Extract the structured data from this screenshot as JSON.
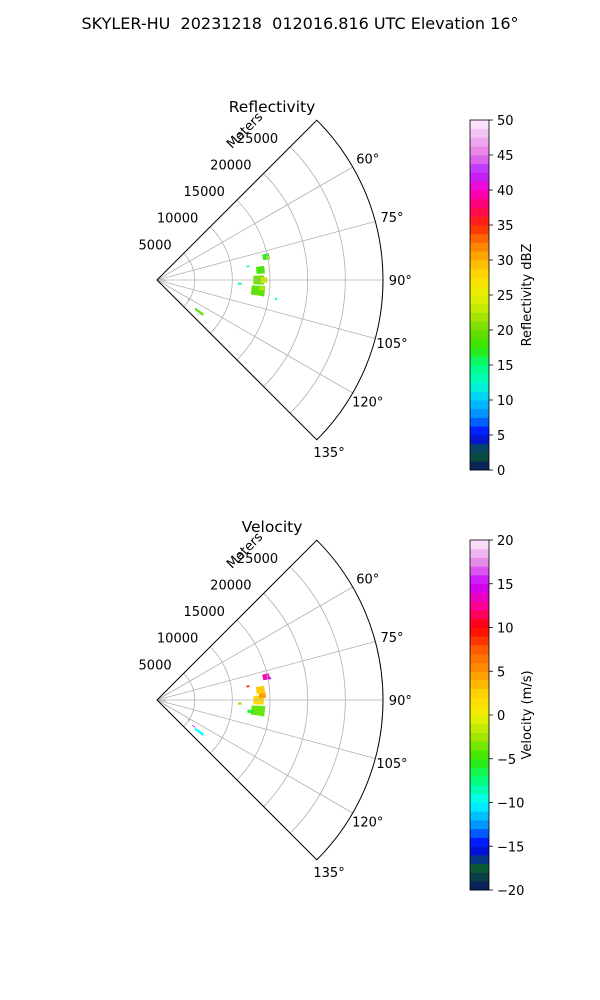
{
  "figure": {
    "title": "SKYLER-HU  20231218  012016.816 UTC Elevation 16°"
  },
  "chart_data": [
    {
      "type": "heatmap",
      "subtype": "polar-sector",
      "title": "Reflectivity",
      "radial_label": "Meters",
      "radial_ticks": [
        5000,
        10000,
        15000,
        20000,
        25000
      ],
      "radial_tick_labels": [
        "5000",
        "10000",
        "15000",
        "20000",
        "25000"
      ],
      "radial_max_m": 30000,
      "angle_ticks_deg": [
        60,
        75,
        90,
        105,
        120,
        135
      ],
      "angle_tick_labels": [
        "60°",
        "75°",
        "90°",
        "105°",
        "120°",
        "135°"
      ],
      "azimuth_range_deg": [
        45,
        135
      ],
      "grid": true,
      "colorbar": {
        "label": "Reflectivity dBZ",
        "min": 0,
        "max": 50,
        "ticks": [
          0,
          5,
          10,
          15,
          20,
          25,
          30,
          35,
          40,
          45,
          50
        ],
        "tick_labels": [
          "0",
          "5",
          "10",
          "15",
          "20",
          "25",
          "30",
          "35",
          "40",
          "45",
          "50"
        ],
        "stops": [
          {
            "value": 0,
            "color": "#0a1464"
          },
          {
            "value": 2.5,
            "color": "#0a5a32"
          },
          {
            "value": 5,
            "color": "#0000ff"
          },
          {
            "value": 7.5,
            "color": "#0080ff"
          },
          {
            "value": 10,
            "color": "#00c8ff"
          },
          {
            "value": 12.5,
            "color": "#00ffc8"
          },
          {
            "value": 15,
            "color": "#00ff80"
          },
          {
            "value": 17.5,
            "color": "#32e600"
          },
          {
            "value": 20,
            "color": "#6edc00"
          },
          {
            "value": 22.5,
            "color": "#b4e600"
          },
          {
            "value": 25,
            "color": "#e6f000"
          },
          {
            "value": 27.5,
            "color": "#ffdc00"
          },
          {
            "value": 30,
            "color": "#ffb400"
          },
          {
            "value": 32.5,
            "color": "#ff7800"
          },
          {
            "value": 35,
            "color": "#ff2800"
          },
          {
            "value": 37.5,
            "color": "#ff0064"
          },
          {
            "value": 40,
            "color": "#ff00c8"
          },
          {
            "value": 42.5,
            "color": "#b428ff"
          },
          {
            "value": 45,
            "color": "#e678e6"
          },
          {
            "value": 47.5,
            "color": "#f0b4f0"
          },
          {
            "value": 50,
            "color": "#fff0ff"
          }
        ]
      },
      "echoes": [
        {
          "az": 90,
          "r": 13500,
          "daz": 5.0,
          "dr": 1400,
          "value": 20
        },
        {
          "az": 90,
          "r": 14200,
          "daz": 3.0,
          "dr": 900,
          "value": 24
        },
        {
          "az": 96,
          "r": 13500,
          "daz": 5.5,
          "dr": 1800,
          "value": 19
        },
        {
          "az": 94.5,
          "r": 14000,
          "daz": 2.0,
          "dr": 700,
          "value": 23
        },
        {
          "az": 84.5,
          "r": 13800,
          "daz": 4.0,
          "dr": 1100,
          "value": 18
        },
        {
          "az": 78,
          "r": 14800,
          "daz": 3.0,
          "dr": 900,
          "value": 17
        },
        {
          "az": 78.5,
          "r": 15000,
          "daz": 1.2,
          "dr": 400,
          "value": 24
        },
        {
          "az": 81.5,
          "r": 12200,
          "daz": 1.0,
          "dr": 400,
          "value": 14
        },
        {
          "az": 92.5,
          "r": 11000,
          "daz": 1.5,
          "dr": 500,
          "value": 12
        },
        {
          "az": 127,
          "r": 7000,
          "daz": 2.5,
          "dr": 1400,
          "value": 19
        },
        {
          "az": 122,
          "r": 5000,
          "daz": 1.2,
          "dr": 300,
          "value": 11
        },
        {
          "az": 88,
          "r": 700,
          "daz": 6.0,
          "dr": 500,
          "value": 6
        },
        {
          "az": 94,
          "r": 1000,
          "daz": 3.0,
          "dr": 400,
          "value": 9
        },
        {
          "az": 99,
          "r": 16000,
          "daz": 1.0,
          "dr": 300,
          "value": 13
        }
      ]
    },
    {
      "type": "heatmap",
      "subtype": "polar-sector",
      "title": "Velocity",
      "radial_label": "Meters",
      "radial_ticks": [
        5000,
        10000,
        15000,
        20000,
        25000
      ],
      "radial_tick_labels": [
        "5000",
        "10000",
        "15000",
        "20000",
        "25000"
      ],
      "radial_max_m": 30000,
      "angle_ticks_deg": [
        60,
        75,
        90,
        105,
        120,
        135
      ],
      "angle_tick_labels": [
        "60°",
        "75°",
        "90°",
        "105°",
        "120°",
        "135°"
      ],
      "azimuth_range_deg": [
        45,
        135
      ],
      "grid": true,
      "colorbar": {
        "label": "Velocity (m/s)",
        "min": -20,
        "max": 20,
        "ticks": [
          -20,
          -15,
          -10,
          -5,
          0,
          5,
          10,
          15,
          20
        ],
        "tick_labels": [
          "−20",
          "−15",
          "−10",
          "−5",
          "0",
          "5",
          "10",
          "15",
          "20"
        ],
        "stops": [
          {
            "value": -20,
            "color": "#0a1464"
          },
          {
            "value": -17.5,
            "color": "#0a5a32"
          },
          {
            "value": -15,
            "color": "#0000ff"
          },
          {
            "value": -12.5,
            "color": "#0096ff"
          },
          {
            "value": -10,
            "color": "#00ffff"
          },
          {
            "value": -7.5,
            "color": "#00ff80"
          },
          {
            "value": -5,
            "color": "#32e600"
          },
          {
            "value": -2.5,
            "color": "#a0e600"
          },
          {
            "value": 0,
            "color": "#f0f000"
          },
          {
            "value": 2.5,
            "color": "#ffd200"
          },
          {
            "value": 5,
            "color": "#ff9600"
          },
          {
            "value": 7.5,
            "color": "#ff5a00"
          },
          {
            "value": 10,
            "color": "#ff0000"
          },
          {
            "value": 12.5,
            "color": "#ff0096"
          },
          {
            "value": 15,
            "color": "#c800ff"
          },
          {
            "value": 17.5,
            "color": "#e68ce6"
          },
          {
            "value": 20,
            "color": "#fff0ff"
          }
        ]
      },
      "echoes": [
        {
          "az": 90,
          "r": 13500,
          "daz": 5.0,
          "dr": 1400,
          "value": 2
        },
        {
          "az": 87.5,
          "r": 14000,
          "daz": 3.0,
          "dr": 900,
          "value": 5
        },
        {
          "az": 96,
          "r": 13500,
          "daz": 5.5,
          "dr": 1800,
          "value": -4
        },
        {
          "az": 97,
          "r": 12500,
          "daz": 2.0,
          "dr": 800,
          "value": -6
        },
        {
          "az": 84.5,
          "r": 13800,
          "daz": 4.0,
          "dr": 1100,
          "value": 3
        },
        {
          "az": 78,
          "r": 14800,
          "daz": 3.0,
          "dr": 900,
          "value": 13
        },
        {
          "az": 79,
          "r": 15200,
          "daz": 1.2,
          "dr": 400,
          "value": 15
        },
        {
          "az": 81.5,
          "r": 12200,
          "daz": 1.0,
          "dr": 400,
          "value": 10
        },
        {
          "az": 92.5,
          "r": 11000,
          "daz": 1.5,
          "dr": 500,
          "value": -3
        },
        {
          "az": 127,
          "r": 7000,
          "daz": 2.5,
          "dr": 1400,
          "value": -10
        },
        {
          "az": 125.5,
          "r": 6000,
          "daz": 1.0,
          "dr": 500,
          "value": 15
        },
        {
          "az": 122,
          "r": 5000,
          "daz": 1.2,
          "dr": 300,
          "value": 9
        },
        {
          "az": 88,
          "r": 700,
          "daz": 6.0,
          "dr": 500,
          "value": -8
        },
        {
          "az": 94,
          "r": 1000,
          "daz": 3.0,
          "dr": 400,
          "value": 10
        }
      ]
    }
  ]
}
